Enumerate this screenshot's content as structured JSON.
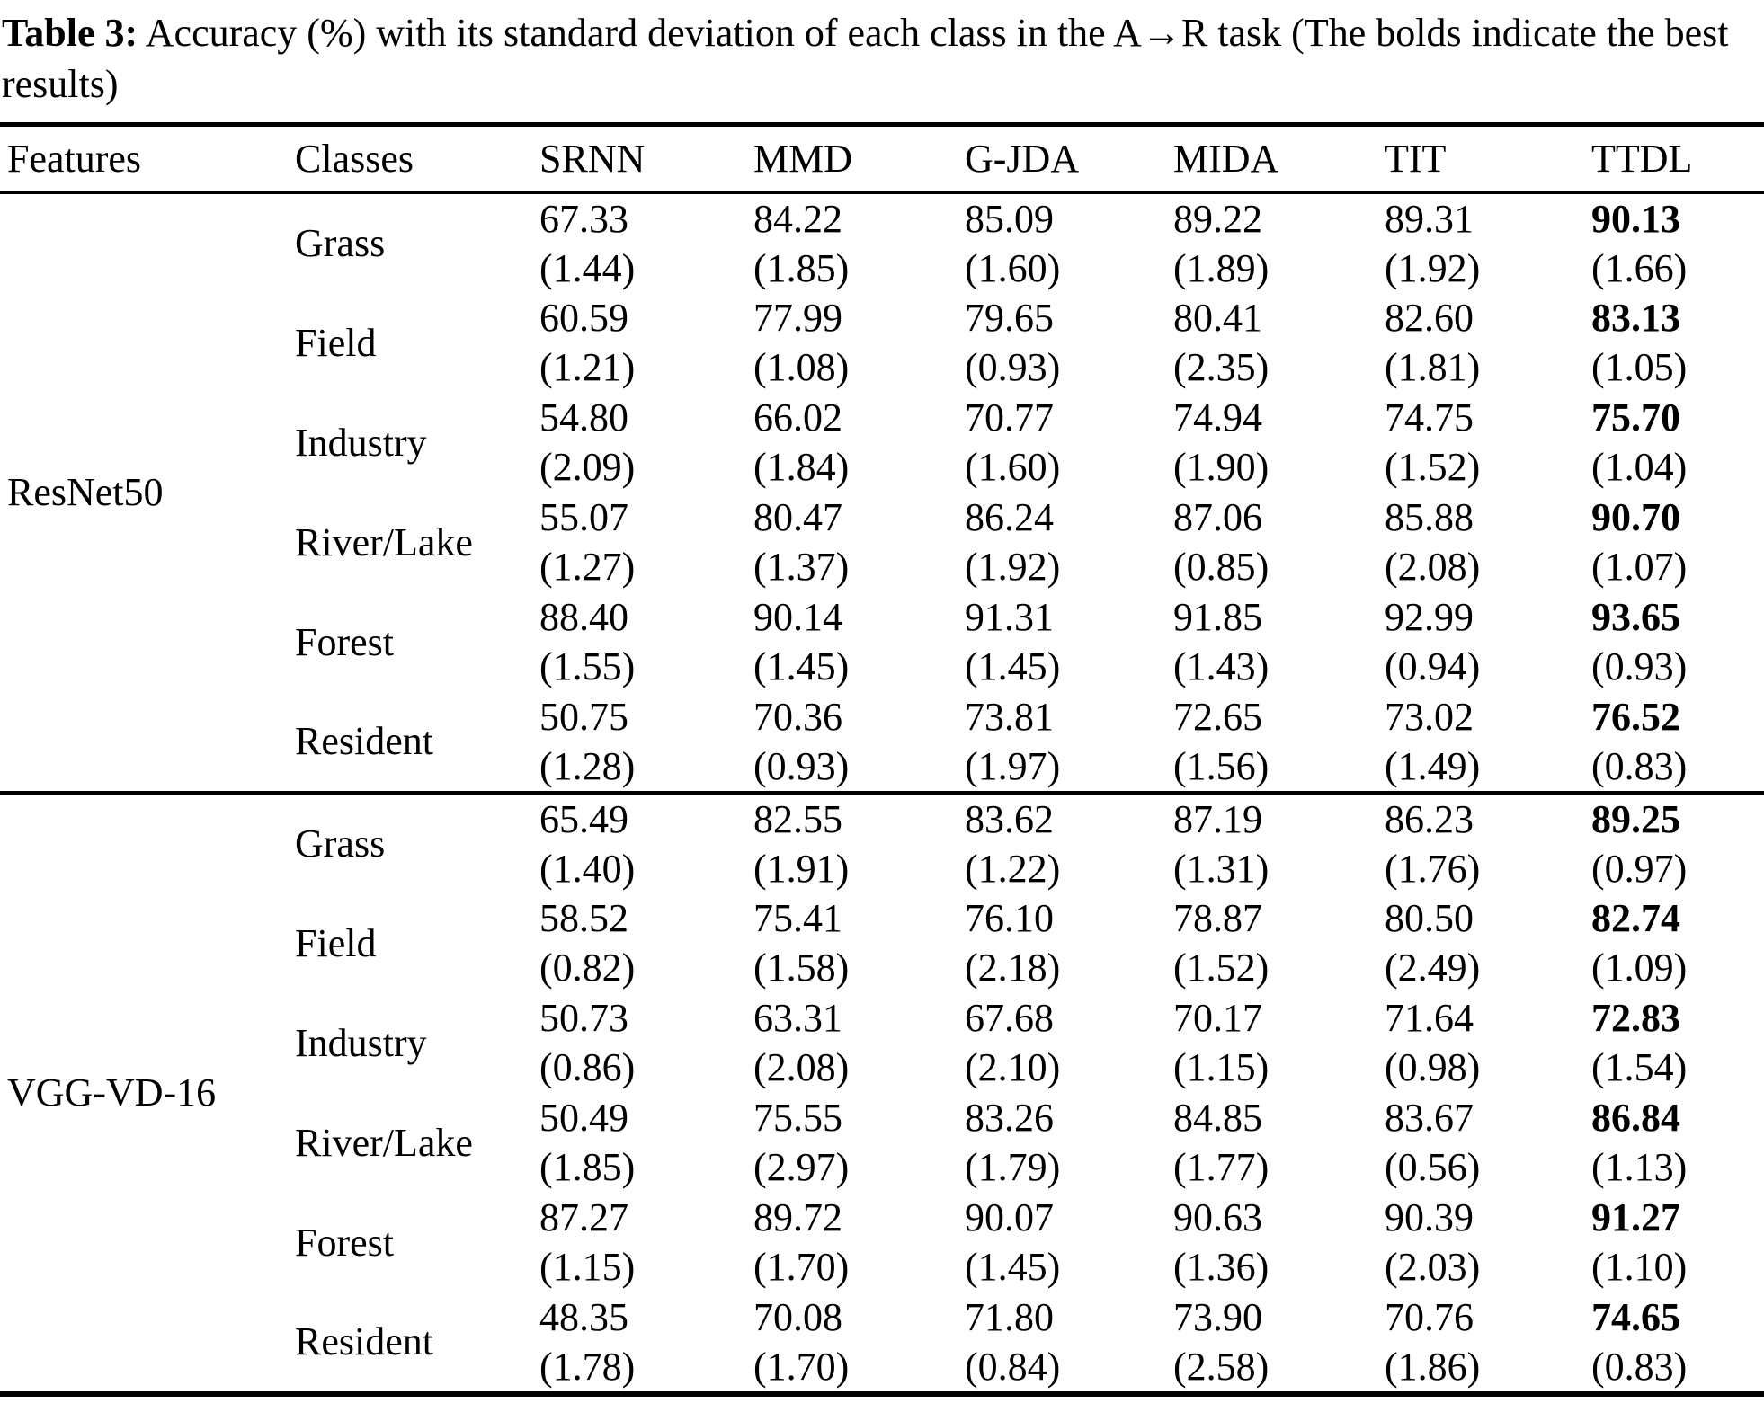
{
  "caption": {
    "label": "Table 3:",
    "text": " Accuracy (%) with its standard deviation of each class in the A→R task (The bolds indicate the best results)"
  },
  "table": {
    "headers": [
      "Features",
      "Classes",
      "SRNN",
      "MMD",
      "G-JDA",
      "MIDA",
      "TIT",
      "TTDL"
    ],
    "bold_col_index": 5,
    "groups": [
      {
        "feature": "ResNet50",
        "rows": [
          {
            "class_name": "Grass",
            "values": [
              "67.33",
              "84.22",
              "85.09",
              "89.22",
              "89.31",
              "90.13"
            ],
            "stds": [
              "(1.44)",
              "(1.85)",
              "(1.60)",
              "(1.89)",
              "(1.92)",
              "(1.66)"
            ]
          },
          {
            "class_name": "Field",
            "values": [
              "60.59",
              "77.99",
              "79.65",
              "80.41",
              "82.60",
              "83.13"
            ],
            "stds": [
              "(1.21)",
              "(1.08)",
              "(0.93)",
              "(2.35)",
              "(1.81)",
              "(1.05)"
            ]
          },
          {
            "class_name": "Industry",
            "values": [
              "54.80",
              "66.02",
              "70.77",
              "74.94",
              "74.75",
              "75.70"
            ],
            "stds": [
              "(2.09)",
              "(1.84)",
              "(1.60)",
              "(1.90)",
              "(1.52)",
              "(1.04)"
            ]
          },
          {
            "class_name": "River/Lake",
            "values": [
              "55.07",
              "80.47",
              "86.24",
              "87.06",
              "85.88",
              "90.70"
            ],
            "stds": [
              "(1.27)",
              "(1.37)",
              "(1.92)",
              "(0.85)",
              "(2.08)",
              "(1.07)"
            ]
          },
          {
            "class_name": "Forest",
            "values": [
              "88.40",
              "90.14",
              "91.31",
              "91.85",
              "92.99",
              "93.65"
            ],
            "stds": [
              "(1.55)",
              "(1.45)",
              "(1.45)",
              "(1.43)",
              "(0.94)",
              "(0.93)"
            ]
          },
          {
            "class_name": "Resident",
            "values": [
              "50.75",
              "70.36",
              "73.81",
              "72.65",
              "73.02",
              "76.52"
            ],
            "stds": [
              "(1.28)",
              "(0.93)",
              "(1.97)",
              "(1.56)",
              "(1.49)",
              "(0.83)"
            ]
          }
        ]
      },
      {
        "feature": "VGG-VD-16",
        "rows": [
          {
            "class_name": "Grass",
            "values": [
              "65.49",
              "82.55",
              "83.62",
              "87.19",
              "86.23",
              "89.25"
            ],
            "stds": [
              "(1.40)",
              "(1.91)",
              "(1.22)",
              "(1.31)",
              "(1.76)",
              "(0.97)"
            ]
          },
          {
            "class_name": "Field",
            "values": [
              "58.52",
              "75.41",
              "76.10",
              "78.87",
              "80.50",
              "82.74"
            ],
            "stds": [
              "(0.82)",
              "(1.58)",
              "(2.18)",
              "(1.52)",
              "(2.49)",
              "(1.09)"
            ]
          },
          {
            "class_name": "Industry",
            "values": [
              "50.73",
              "63.31",
              "67.68",
              "70.17",
              "71.64",
              "72.83"
            ],
            "stds": [
              "(0.86)",
              "(2.08)",
              "(2.10)",
              "(1.15)",
              "(0.98)",
              "(1.54)"
            ]
          },
          {
            "class_name": "River/Lake",
            "values": [
              "50.49",
              "75.55",
              "83.26",
              "84.85",
              "83.67",
              "86.84"
            ],
            "stds": [
              "(1.85)",
              "(2.97)",
              "(1.79)",
              "(1.77)",
              "(0.56)",
              "(1.13)"
            ]
          },
          {
            "class_name": "Forest",
            "values": [
              "87.27",
              "89.72",
              "90.07",
              "90.63",
              "90.39",
              "91.27"
            ],
            "stds": [
              "(1.15)",
              "(1.70)",
              "(1.45)",
              "(1.36)",
              "(2.03)",
              "(1.10)"
            ]
          },
          {
            "class_name": "Resident",
            "values": [
              "48.35",
              "70.08",
              "71.80",
              "73.90",
              "70.76",
              "74.65"
            ],
            "stds": [
              "(1.78)",
              "(1.70)",
              "(0.84)",
              "(2.58)",
              "(1.86)",
              "(0.83)"
            ]
          }
        ]
      }
    ]
  }
}
